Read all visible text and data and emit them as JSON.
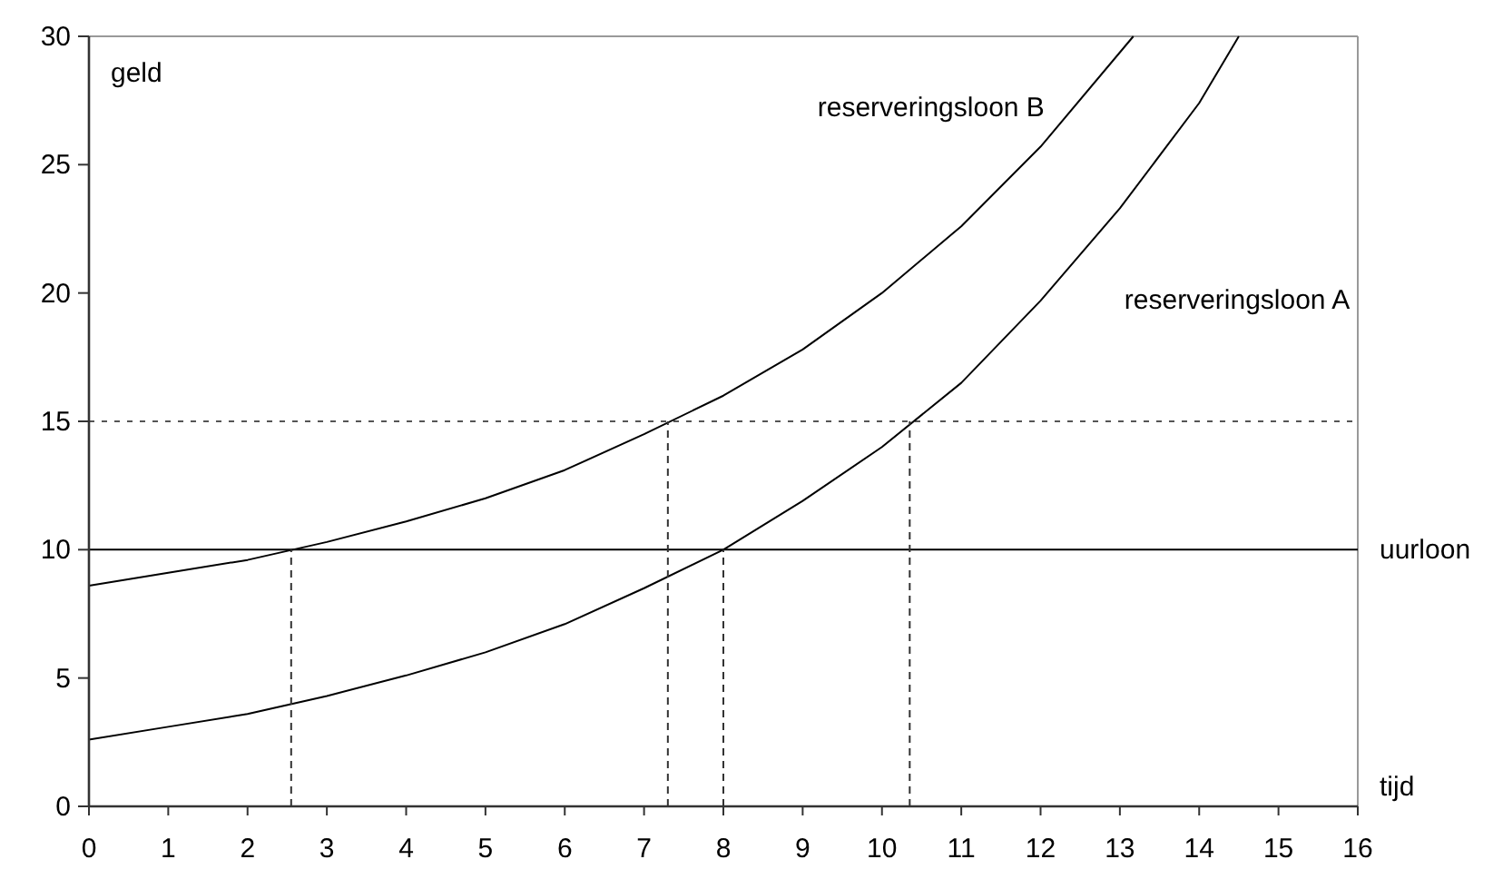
{
  "chart_data": {
    "type": "line",
    "xlabel": "tijd",
    "ylabel": "geld",
    "xlim": [
      0,
      16
    ],
    "ylim": [
      0,
      30
    ],
    "xticks": [
      0,
      1,
      2,
      3,
      4,
      5,
      6,
      7,
      8,
      9,
      10,
      11,
      12,
      13,
      14,
      15,
      16
    ],
    "yticks": [
      0,
      5,
      10,
      15,
      20,
      25,
      30
    ],
    "grid": false,
    "marker": "none",
    "series": [
      {
        "name": "reserveringsloon B",
        "color": "#000000",
        "line_style": "solid",
        "x": [
          0,
          1,
          2,
          3,
          4,
          5,
          6,
          7,
          8,
          9,
          10,
          11,
          12,
          13.17
        ],
        "values": [
          8.6,
          9.1,
          9.6,
          10.3,
          11.1,
          12.0,
          13.1,
          14.5,
          16.0,
          17.8,
          20.0,
          22.6,
          25.7,
          30
        ]
      },
      {
        "name": "reserveringsloon A",
        "color": "#000000",
        "line_style": "solid",
        "x": [
          0,
          1,
          2,
          3,
          4,
          5,
          6,
          7,
          8,
          9,
          10,
          11,
          12,
          13,
          14,
          14.5
        ],
        "values": [
          2.6,
          3.1,
          3.6,
          4.3,
          5.1,
          6.0,
          7.1,
          8.5,
          10.0,
          11.9,
          14.0,
          16.5,
          19.7,
          23.3,
          27.4,
          30
        ]
      },
      {
        "color": "#333333",
        "line_style": "dashed",
        "x": [
          2.55,
          2.55
        ],
        "values": [
          0,
          10
        ]
      },
      {
        "color": "#333333",
        "line_style": "dashed",
        "x": [
          7.3,
          7.3
        ],
        "values": [
          0,
          15
        ]
      },
      {
        "color": "#333333",
        "line_style": "dashed",
        "x": [
          8,
          8
        ],
        "values": [
          0,
          10
        ]
      },
      {
        "color": "#333333",
        "line_style": "dashed",
        "x": [
          10.35,
          10.35
        ],
        "values": [
          0,
          15
        ]
      }
    ],
    "ref_lines": [
      {
        "axis": "y",
        "value": 10,
        "label": "uurloon",
        "color": "#000000",
        "line_style": "solid"
      },
      {
        "axis": "y",
        "value": 15,
        "label": null,
        "color": "#555555",
        "line_style": "dotted"
      }
    ]
  }
}
